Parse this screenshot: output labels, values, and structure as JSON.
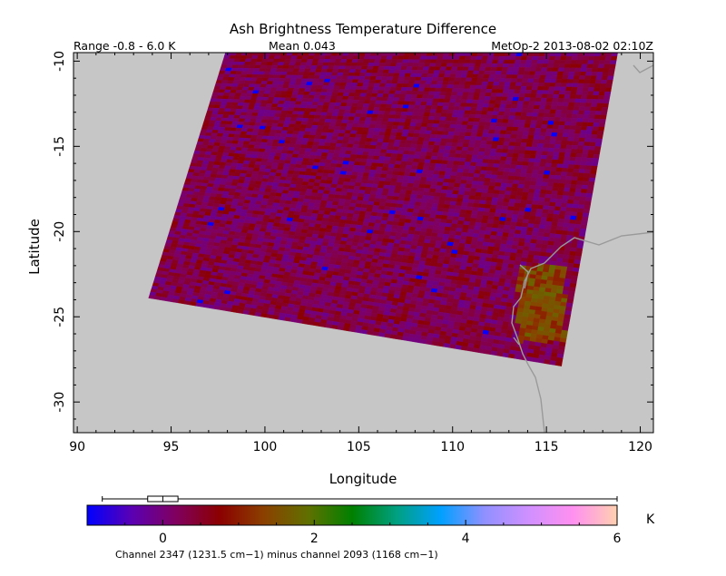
{
  "chart_data": {
    "type": "heatmap",
    "title": "Ash Brightness Temperature Difference",
    "subtitle_range": "Range -0.8 - 6.0 K",
    "subtitle_mean": "Mean 0.043",
    "subtitle_source": "MetOp-2 2013-08-02 02:10Z",
    "xlabel": "Longitude",
    "ylabel": "Latitude",
    "xlim": [
      89.8,
      120.7
    ],
    "ylim": [
      -31.8,
      -9.5
    ],
    "xticks": [
      90,
      95,
      100,
      105,
      110,
      115,
      120
    ],
    "yticks": [
      -10,
      -15,
      -20,
      -25,
      -30
    ],
    "swath": {
      "corners": [
        [
          97.9,
          -9.5
        ],
        [
          118.8,
          -9.5
        ],
        [
          115.8,
          -27.9
        ],
        [
          93.8,
          -23.9
        ]
      ],
      "dominant_value": 0.3,
      "anomaly_region": {
        "lon": [
          113.5,
          116.0
        ],
        "lat": [
          -26.5,
          -22.0
        ],
        "value": 1.4
      }
    },
    "colorbar": {
      "min": -1.0,
      "max": 6.0,
      "ticks": [
        0,
        2,
        4,
        6
      ],
      "unit": "K",
      "caption": "Channel 2347 (1231.5 cm−1) minus channel 2093 (1168 cm−1)",
      "stops": [
        "#0000ff",
        "#5a00b4",
        "#800060",
        "#8b0000",
        "#8b4000",
        "#607000",
        "#008000",
        "#00a080",
        "#00a0ff",
        "#9090ff",
        "#d090ff",
        "#ff90f0",
        "#ffd0b0"
      ],
      "boxplot": {
        "whisker_low": -0.8,
        "q1": -0.2,
        "median": 0.0,
        "q3": 0.2,
        "whisker_high": 6.0
      }
    }
  }
}
